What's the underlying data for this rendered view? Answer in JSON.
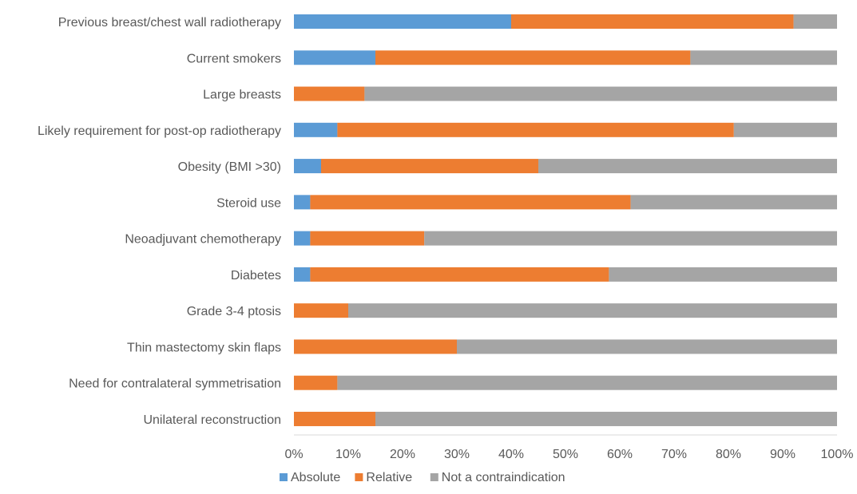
{
  "chart_data": {
    "type": "bar",
    "orientation": "horizontal",
    "stacked": true,
    "percent_stacked": true,
    "categories": [
      "Previous breast/chest wall radiotherapy",
      "Current smokers",
      "Large breasts",
      "Likely requirement for post-op radiotherapy",
      "Obesity (BMI >30)",
      "Steroid use",
      "Neoadjuvant chemotherapy",
      "Diabetes",
      "Grade 3-4 ptosis",
      "Thin mastectomy skin flaps",
      "Need for contralateral symmetrisation",
      "Unilateral reconstruction"
    ],
    "series": [
      {
        "name": "Absolute",
        "color": "#5B9BD5",
        "values": [
          40,
          15,
          0,
          8,
          5,
          3,
          3,
          3,
          0,
          0,
          0,
          0
        ]
      },
      {
        "name": "Relative",
        "color": "#ED7D31",
        "values": [
          52,
          58,
          13,
          73,
          40,
          59,
          21,
          55,
          10,
          30,
          8,
          15
        ]
      },
      {
        "name": "Not a contraindication",
        "color": "#A5A5A5",
        "values": [
          8,
          27,
          87,
          19,
          55,
          38,
          76,
          42,
          90,
          70,
          92,
          85
        ]
      }
    ],
    "x_ticks": [
      "0%",
      "10%",
      "20%",
      "30%",
      "40%",
      "50%",
      "60%",
      "70%",
      "80%",
      "90%",
      "100%"
    ],
    "xlim": [
      0,
      100
    ],
    "grid": false,
    "legend_position": "bottom",
    "title": "",
    "xlabel": "",
    "ylabel": ""
  }
}
